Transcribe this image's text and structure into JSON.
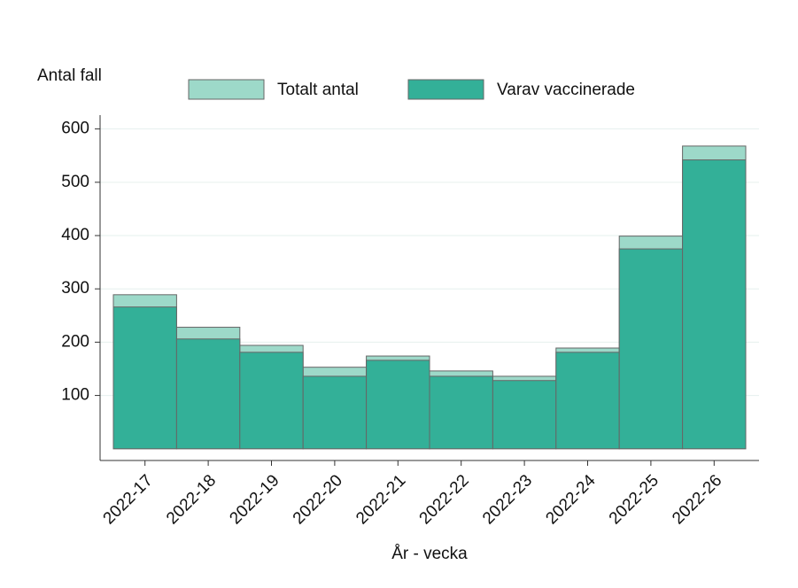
{
  "chart_data": {
    "type": "bar",
    "y_label": "Antal fall",
    "x_label": "År - vecka",
    "categories": [
      "2022-17",
      "2022-18",
      "2022-19",
      "2022-20",
      "2022-21",
      "2022-22",
      "2022-23",
      "2022-24",
      "2022-25",
      "2022-26"
    ],
    "series": [
      {
        "name": "Totalt antal",
        "color": "#9dd9c9",
        "values": [
          289,
          228,
          194,
          153,
          174,
          146,
          136,
          189,
          399,
          568
        ]
      },
      {
        "name": "Varav vaccinerade",
        "color": "#33b098",
        "values": [
          266,
          206,
          181,
          136,
          166,
          136,
          128,
          181,
          375,
          542
        ]
      }
    ],
    "ylim": [
      -22,
      626
    ],
    "yticks": [
      100,
      200,
      300,
      400,
      500,
      600
    ],
    "grid": true
  }
}
